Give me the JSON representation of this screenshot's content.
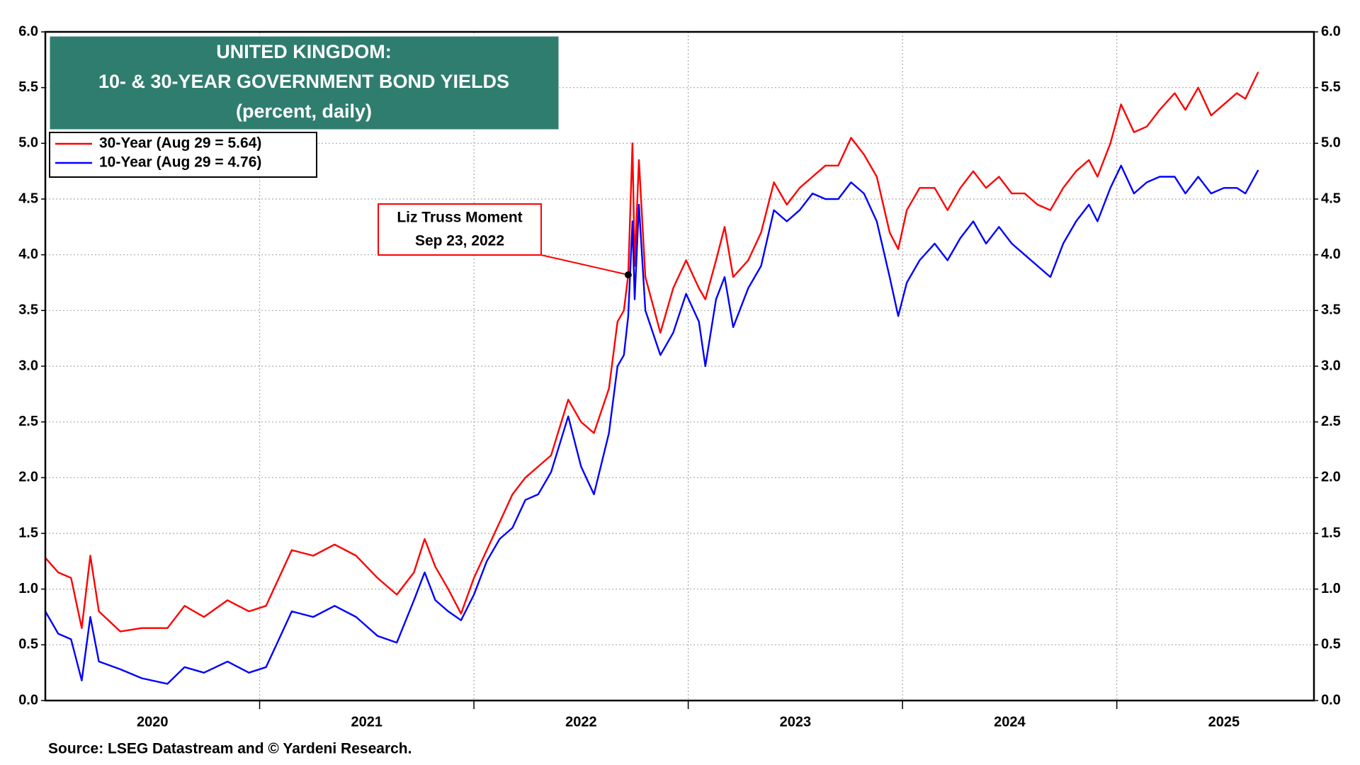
{
  "chart_data": {
    "type": "line",
    "title": "UNITED KINGDOM:",
    "subtitle": "10- & 30-YEAR GOVERNMENT BOND YIELDS",
    "units": "(percent, daily)",
    "source": "Source: LSEG Datastream and © Yardeni Research.",
    "x": [
      2020.0,
      2020.06,
      2020.12,
      2020.17,
      2020.21,
      2020.25,
      2020.35,
      2020.45,
      2020.57,
      2020.65,
      2020.74,
      2020.85,
      2020.95,
      2021.03,
      2021.09,
      2021.15,
      2021.25,
      2021.35,
      2021.45,
      2021.55,
      2021.64,
      2021.72,
      2021.77,
      2021.82,
      2021.88,
      2021.94,
      2022.0,
      2022.06,
      2022.12,
      2022.18,
      2022.24,
      2022.3,
      2022.36,
      2022.44,
      2022.5,
      2022.56,
      2022.63,
      2022.67,
      2022.7,
      2022.72,
      2022.74,
      2022.75,
      2022.77,
      2022.8,
      2022.87,
      2022.93,
      2022.99,
      2023.05,
      2023.08,
      2023.13,
      2023.17,
      2023.21,
      2023.28,
      2023.34,
      2023.4,
      2023.46,
      2023.52,
      2023.58,
      2023.64,
      2023.7,
      2023.76,
      2023.82,
      2023.88,
      2023.94,
      2023.98,
      2024.02,
      2024.08,
      2024.15,
      2024.21,
      2024.27,
      2024.33,
      2024.39,
      2024.45,
      2024.51,
      2024.57,
      2024.63,
      2024.69,
      2024.75,
      2024.81,
      2024.87,
      2024.91,
      2024.97,
      2025.02,
      2025.08,
      2025.14,
      2025.2,
      2025.27,
      2025.32,
      2025.38,
      2025.44,
      2025.5,
      2025.56,
      2025.6,
      2025.66
    ],
    "series": [
      {
        "name": "30-Year (Aug 29 = 5.64)",
        "color": "#ff0000",
        "values": [
          1.28,
          1.15,
          1.1,
          0.65,
          1.3,
          0.8,
          0.62,
          0.65,
          0.65,
          0.85,
          0.75,
          0.9,
          0.8,
          0.85,
          1.1,
          1.35,
          1.3,
          1.4,
          1.3,
          1.1,
          0.95,
          1.15,
          1.45,
          1.2,
          1.0,
          0.78,
          1.1,
          1.35,
          1.6,
          1.85,
          2.0,
          2.1,
          2.2,
          2.7,
          2.5,
          2.4,
          2.8,
          3.4,
          3.5,
          3.82,
          5.0,
          3.9,
          4.85,
          3.8,
          3.3,
          3.7,
          3.95,
          3.7,
          3.6,
          3.95,
          4.25,
          3.8,
          3.95,
          4.2,
          4.65,
          4.45,
          4.6,
          4.7,
          4.8,
          4.8,
          5.05,
          4.9,
          4.7,
          4.2,
          4.05,
          4.4,
          4.6,
          4.6,
          4.4,
          4.6,
          4.75,
          4.6,
          4.7,
          4.55,
          4.55,
          4.45,
          4.4,
          4.6,
          4.75,
          4.85,
          4.7,
          5.0,
          5.35,
          5.1,
          5.15,
          5.3,
          5.45,
          5.3,
          5.5,
          5.25,
          5.35,
          5.45,
          5.4,
          5.64
        ]
      },
      {
        "name": "10-Year (Aug 29 = 4.76)",
        "color": "#0000ff",
        "values": [
          0.8,
          0.6,
          0.55,
          0.18,
          0.75,
          0.35,
          0.28,
          0.2,
          0.15,
          0.3,
          0.25,
          0.35,
          0.25,
          0.3,
          0.55,
          0.8,
          0.75,
          0.85,
          0.75,
          0.58,
          0.52,
          0.9,
          1.15,
          0.9,
          0.8,
          0.72,
          0.95,
          1.25,
          1.45,
          1.55,
          1.8,
          1.85,
          2.05,
          2.55,
          2.1,
          1.85,
          2.4,
          3.0,
          3.1,
          3.45,
          4.3,
          3.6,
          4.45,
          3.5,
          3.1,
          3.3,
          3.65,
          3.4,
          3.0,
          3.6,
          3.8,
          3.35,
          3.7,
          3.9,
          4.4,
          4.3,
          4.4,
          4.55,
          4.5,
          4.5,
          4.65,
          4.55,
          4.3,
          3.8,
          3.45,
          3.75,
          3.95,
          4.1,
          3.95,
          4.15,
          4.3,
          4.1,
          4.25,
          4.1,
          4.0,
          3.9,
          3.8,
          4.1,
          4.3,
          4.45,
          4.3,
          4.6,
          4.8,
          4.55,
          4.65,
          4.7,
          4.7,
          4.55,
          4.7,
          4.55,
          4.6,
          4.6,
          4.55,
          4.76
        ]
      }
    ],
    "annotation": {
      "lines": [
        "Liz Truss Moment",
        "Sep 23, 2022"
      ],
      "x": 2022.72,
      "y": 3.82
    },
    "xlim": [
      2020.0,
      2025.92
    ],
    "xticks": [
      {
        "value": 2020.5,
        "label": "2020"
      },
      {
        "value": 2021.5,
        "label": "2021"
      },
      {
        "value": 2022.5,
        "label": "2022"
      },
      {
        "value": 2023.5,
        "label": "2023"
      },
      {
        "value": 2024.5,
        "label": "2024"
      },
      {
        "value": 2025.5,
        "label": "2025"
      }
    ],
    "xgrid": [
      2021,
      2022,
      2023,
      2024,
      2025
    ],
    "ylim": [
      0,
      6
    ],
    "yticks": [
      {
        "value": 0,
        "label": "0.0"
      },
      0.5,
      {
        "value": 1,
        "label": "1.0"
      },
      1.5,
      {
        "value": 2,
        "label": "2.0"
      },
      2.5,
      {
        "value": 3,
        "label": "3.0"
      },
      3.5,
      {
        "value": 4,
        "label": "4.0"
      },
      4.5,
      {
        "value": 5,
        "label": "5.0"
      },
      5.5,
      {
        "value": 6,
        "label": "6.0"
      }
    ],
    "y2lim": [
      0,
      6
    ],
    "y2ticks": [
      {
        "value": 0,
        "label": "0.0"
      },
      0.5,
      {
        "value": 1,
        "label": "1.0"
      },
      1.5,
      {
        "value": 2,
        "label": "2.0"
      },
      2.5,
      {
        "value": 3,
        "label": "3.0"
      },
      3.5,
      {
        "value": 4,
        "label": "4.0"
      },
      4.5,
      {
        "value": 5,
        "label": "5.0"
      },
      5.5,
      {
        "value": 6,
        "label": "6.0"
      }
    ],
    "grid": true,
    "title_box_color": "#2f7d6f",
    "legend": "upper left"
  }
}
